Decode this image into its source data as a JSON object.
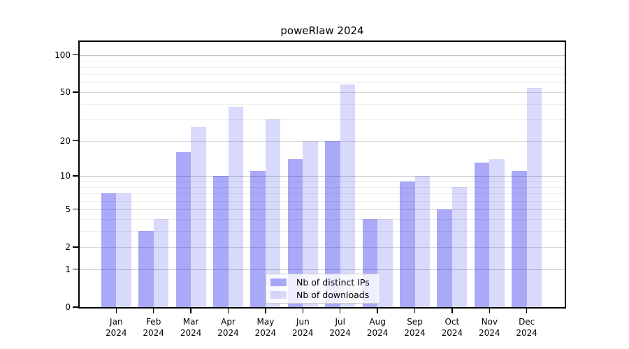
{
  "title": "poweRlaw 2024",
  "chart_data": {
    "type": "bar",
    "title": "poweRlaw 2024",
    "year": "2024",
    "months": [
      "Jan",
      "Feb",
      "Mar",
      "Apr",
      "May",
      "Jun",
      "Jul",
      "Aug",
      "Sep",
      "Oct",
      "Nov",
      "Dec"
    ],
    "series": [
      {
        "name": "Nb of distinct IPs",
        "color": "#1E1EEB61",
        "values": [
          7,
          3,
          16,
          10,
          11,
          14,
          20,
          4,
          9,
          5,
          13,
          11
        ]
      },
      {
        "name": "Nb of downloads",
        "color": "#1E1EEB2B",
        "values": [
          7,
          4,
          26,
          38,
          30,
          20,
          58,
          4,
          10,
          8,
          14,
          54
        ]
      }
    ],
    "y_axis": {
      "scale": "log1p",
      "max": 127,
      "ticks": [
        0,
        1,
        2,
        5,
        10,
        20,
        50,
        100
      ],
      "decade_ticks": [
        1,
        10,
        100
      ],
      "minor_ticks": [
        3,
        4,
        6,
        7,
        8,
        9,
        30,
        40,
        60,
        70,
        80,
        90
      ]
    },
    "legend_position": "bottom-center",
    "grid": true
  }
}
